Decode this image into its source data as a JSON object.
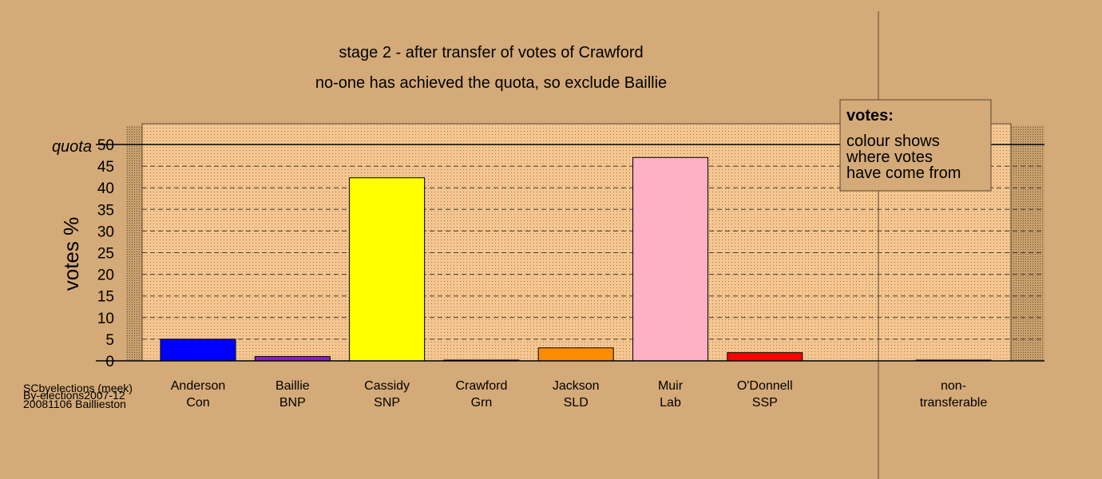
{
  "chart_data": {
    "type": "bar",
    "title": "stage 2 - after transfer of votes of Crawford",
    "subtitle": "no-one has achieved the quota, so exclude Baillie",
    "ylabel": "votes %",
    "quota_label": "quota",
    "quota": 50,
    "ylim": [
      0,
      50
    ],
    "yticks": [
      "0",
      "5",
      "10",
      "15",
      "20",
      "25",
      "30",
      "35",
      "40",
      "45",
      "50"
    ],
    "grid": true,
    "categories": [
      {
        "name": "Anderson",
        "party": "Con"
      },
      {
        "name": "Baillie",
        "party": "BNP"
      },
      {
        "name": "Cassidy",
        "party": "SNP"
      },
      {
        "name": "Crawford",
        "party": "Grn"
      },
      {
        "name": "Jackson",
        "party": "SLD"
      },
      {
        "name": "Muir",
        "party": "Lab"
      },
      {
        "name": "O'Donnell",
        "party": "SSP"
      }
    ],
    "values": [
      5.0,
      1.0,
      42.3,
      0.0,
      3.0,
      47.0,
      1.9
    ],
    "colors": [
      "#0000ff",
      "#8b1fc0",
      "#ffff00",
      "#00aa00",
      "#ff8c00",
      "#ffb0c4",
      "#ff0000"
    ],
    "nontransferable": {
      "label_line1": "non-",
      "label_line2": "transferable",
      "value": 0.1
    },
    "legend": {
      "placement": "top-right",
      "title": "votes:",
      "lines": [
        "colour shows",
        "where votes",
        "have come from"
      ]
    },
    "credit": [
      "SCbyelections (meek)",
      "By-elections2007-12",
      "20081106 Baillieston"
    ]
  },
  "colors": {
    "background": "#d4aa78",
    "panel": "#f6c690",
    "axis": "#000000"
  }
}
